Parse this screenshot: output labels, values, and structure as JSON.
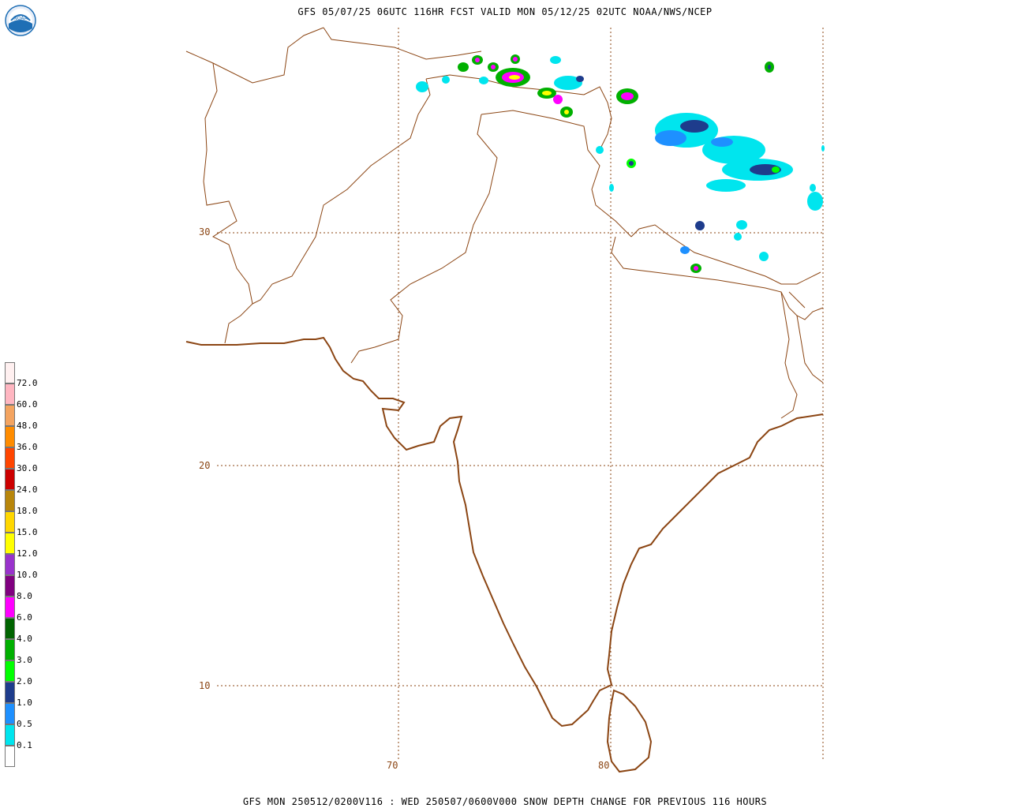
{
  "header": {
    "title": "GFS 05/07/25 06UTC 116HR FCST VALID MON 05/12/25 02UTC NOAA/NWS/NCEP"
  },
  "footer": {
    "title": "GFS MON 250512/0200V116 : WED 250507/0600V000 SNOW DEPTH CHANGE FOR PREVIOUS 116 HOURS"
  },
  "logo": {
    "text": "NOAA",
    "icon": "noaa-logo-icon",
    "color": "#1f6fb5"
  },
  "map": {
    "latitudes": [
      {
        "label": "30",
        "value": 30
      },
      {
        "label": "20",
        "value": 20
      },
      {
        "label": "10",
        "value": 10
      }
    ],
    "longitudes": [
      {
        "label": "70",
        "value": 70
      },
      {
        "label": "80",
        "value": 80
      }
    ],
    "border_color": "#8b4513",
    "grid_color": "#8b4513"
  },
  "legend": {
    "items": [
      {
        "label": "72.0",
        "color": "#ffb6c1"
      },
      {
        "label": "60.0",
        "color": "#f4a460"
      },
      {
        "label": "48.0",
        "color": "#ff8c00"
      },
      {
        "label": "36.0",
        "color": "#ff4500"
      },
      {
        "label": "30.0",
        "color": "#cc0000"
      },
      {
        "label": "24.0",
        "color": "#b8860b"
      },
      {
        "label": "18.0",
        "color": "#ffd700"
      },
      {
        "label": "15.0",
        "color": "#ffff00"
      },
      {
        "label": "12.0",
        "color": "#9932cc"
      },
      {
        "label": "10.0",
        "color": "#800080"
      },
      {
        "label": "8.0",
        "color": "#ff00ff"
      },
      {
        "label": "6.0",
        "color": "#006400"
      },
      {
        "label": "4.0",
        "color": "#00b000"
      },
      {
        "label": "3.0",
        "color": "#00ff00"
      },
      {
        "label": "2.0",
        "color": "#1e3c8c"
      },
      {
        "label": "1.0",
        "color": "#1e90ff"
      },
      {
        "label": "0.5",
        "color": "#00e5ee"
      },
      {
        "label": "0.1",
        "color": "#ffffff"
      }
    ],
    "top_color": "#fff0f0"
  }
}
